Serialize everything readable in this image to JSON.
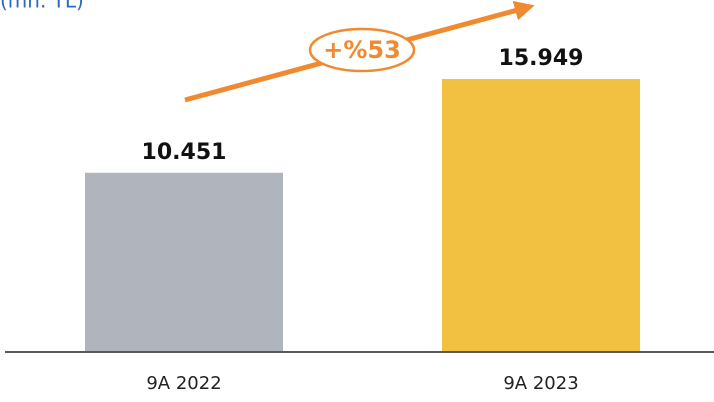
{
  "chart_data": {
    "type": "bar",
    "subtitle": "(mn. TL)",
    "categories": [
      "9A 2022",
      "9A 2023"
    ],
    "values": [
      10451,
      15949
    ],
    "value_labels": [
      "10.451",
      "15.949"
    ],
    "colors": [
      "#b0b4bc",
      "#f2c142"
    ],
    "annotation": "+%53"
  }
}
